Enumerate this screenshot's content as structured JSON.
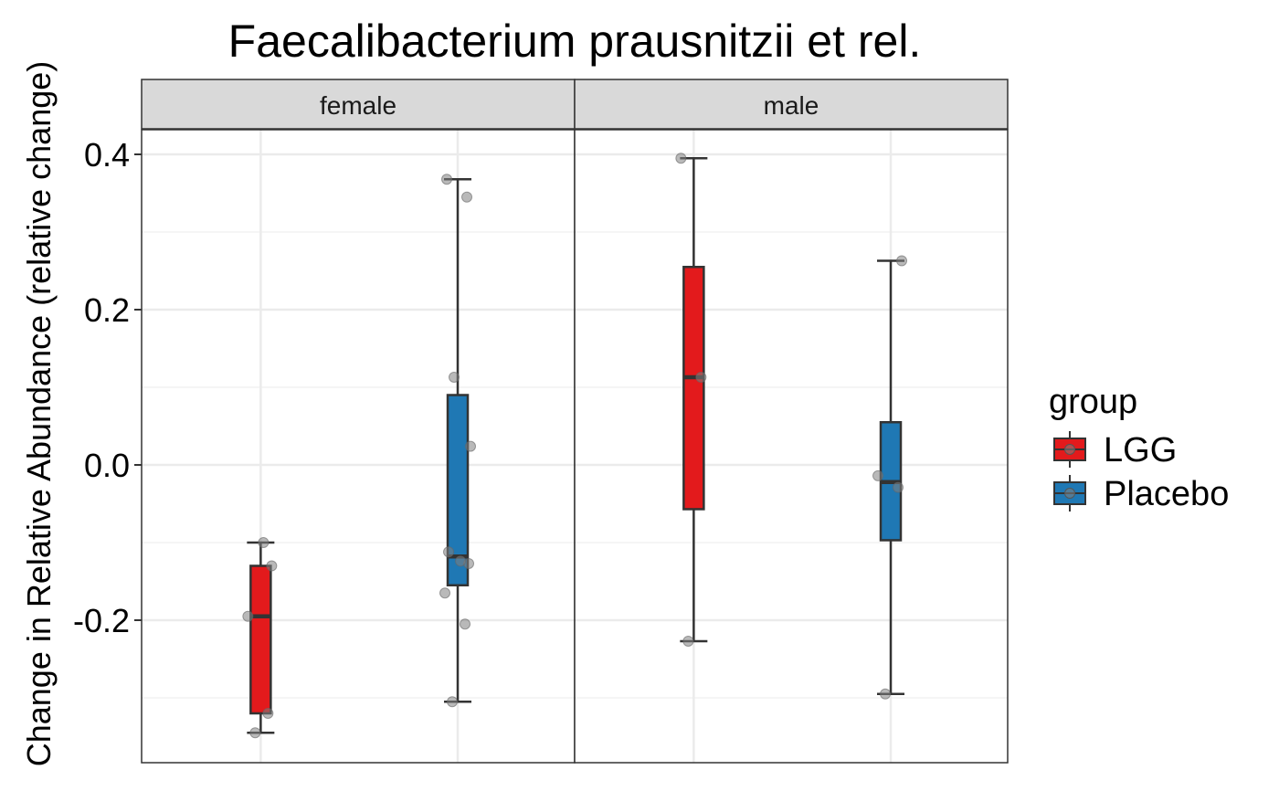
{
  "chart_data": {
    "type": "box",
    "title": "Faecalibacterium prausnitzii et rel.",
    "ylabel": "Change in Relative Abundance (relative change)",
    "xlabel": "",
    "ylim": [
      -0.38,
      0.43
    ],
    "yticks": [
      -0.2,
      0.0,
      0.2,
      0.4
    ],
    "ytick_labels": [
      "-0.2",
      "0.0",
      "0.2",
      "0.4"
    ],
    "grid": true,
    "legend": {
      "title": "group",
      "position": "right",
      "entries": [
        {
          "name": "LGG",
          "color": "#E31A1C"
        },
        {
          "name": "Placebo",
          "color": "#1F78B4"
        }
      ]
    },
    "facets": [
      {
        "label": "female",
        "boxes": [
          {
            "group": "LGG",
            "color": "#E31A1C",
            "whisker_low": -0.345,
            "q1": -0.32,
            "median": -0.195,
            "q3": -0.13,
            "whisker_high": -0.1,
            "points": [
              -0.345,
              -0.32,
              -0.195,
              -0.13,
              -0.1
            ]
          },
          {
            "group": "Placebo",
            "color": "#1F78B4",
            "whisker_low": -0.305,
            "q1": -0.155,
            "median": -0.118,
            "q3": 0.09,
            "whisker_high": 0.368,
            "points": [
              -0.305,
              -0.205,
              -0.165,
              -0.127,
              -0.124,
              -0.112,
              0.024,
              0.113,
              0.345,
              0.368
            ]
          }
        ]
      },
      {
        "label": "male",
        "boxes": [
          {
            "group": "LGG",
            "color": "#E31A1C",
            "whisker_low": -0.227,
            "q1": -0.057,
            "median": 0.113,
            "q3": 0.255,
            "whisker_high": 0.395,
            "points": [
              -0.227,
              0.113,
              0.395
            ]
          },
          {
            "group": "Placebo",
            "color": "#1F78B4",
            "whisker_low": -0.295,
            "q1": -0.097,
            "median": -0.022,
            "q3": 0.055,
            "whisker_high": 0.263,
            "points": [
              -0.295,
              -0.029,
              -0.014,
              0.263
            ]
          }
        ]
      }
    ]
  }
}
